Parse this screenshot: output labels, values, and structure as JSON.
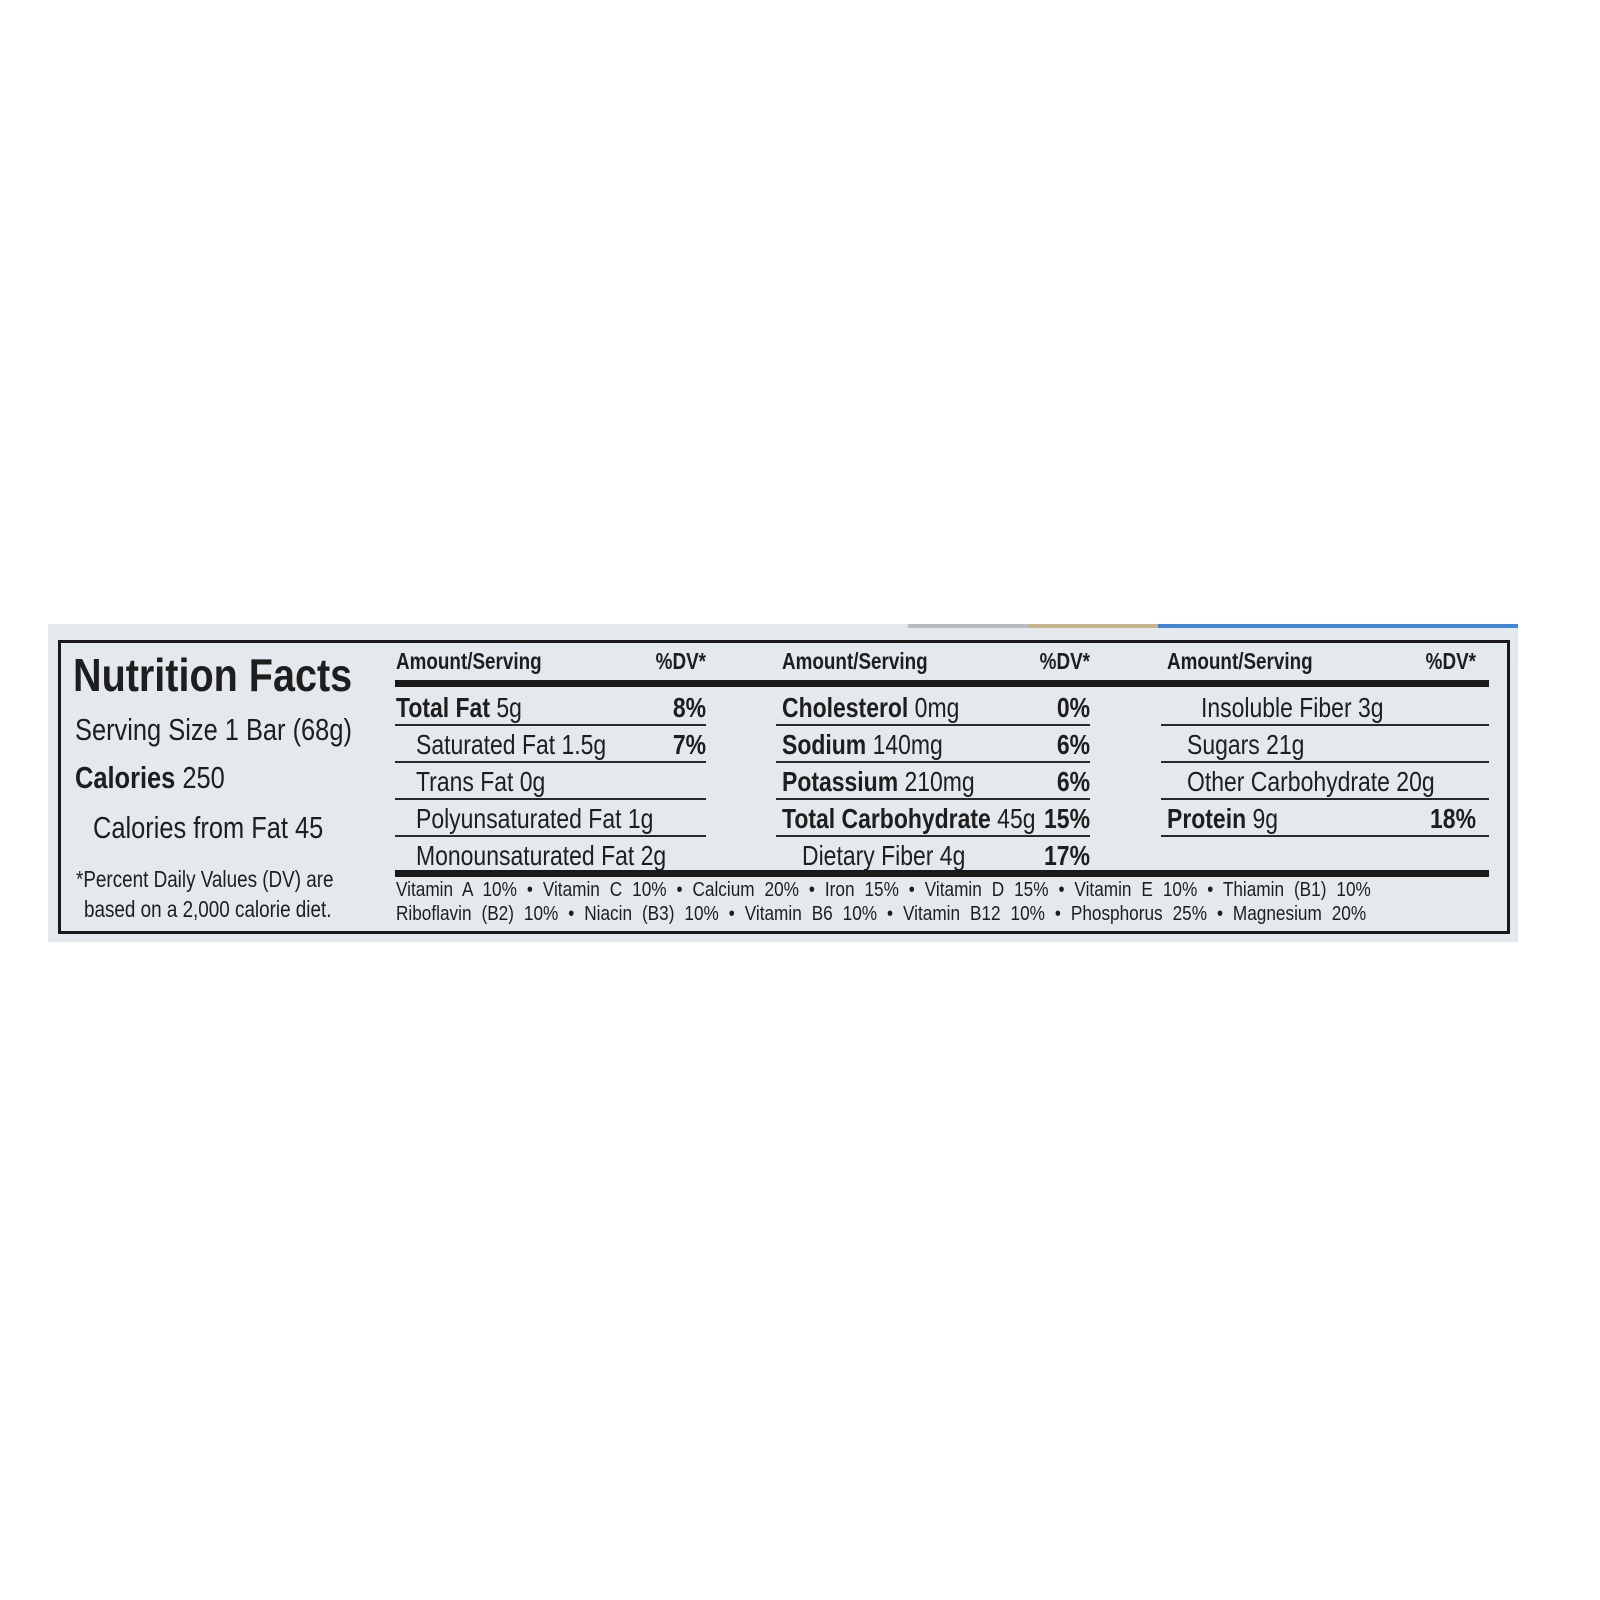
{
  "label": {
    "title": "Nutrition Facts",
    "serving_size": "Serving Size 1 Bar (68g)",
    "calories_label": "Calories",
    "calories_value": "250",
    "calories_from_fat": "Calories from Fat 45",
    "footnote_line1": "*Percent Daily Values (DV) are",
    "footnote_line2": "based on a 2,000 calorie diet."
  },
  "columns": [
    {
      "header_amount": "Amount/Serving",
      "header_dv": "%DV*",
      "rows": [
        {
          "label": "Total Fat",
          "amount": "5g",
          "dv": "8%",
          "bold": true,
          "indent": 0
        },
        {
          "label": "Saturated Fat",
          "amount": "1.5g",
          "dv": "7%",
          "bold": false,
          "indent": 1
        },
        {
          "label": "Trans Fat",
          "amount": "0g",
          "dv": "",
          "bold": false,
          "indent": 1
        },
        {
          "label": "Polyunsaturated Fat",
          "amount": "1g",
          "dv": "",
          "bold": false,
          "indent": 1
        },
        {
          "label": "Monounsaturated Fat",
          "amount": "2g",
          "dv": "",
          "bold": false,
          "indent": 1
        }
      ]
    },
    {
      "header_amount": "Amount/Serving",
      "header_dv": "%DV*",
      "rows": [
        {
          "label": "Cholesterol",
          "amount": "0mg",
          "dv": "0%",
          "bold": true,
          "indent": 0
        },
        {
          "label": "Sodium",
          "amount": "140mg",
          "dv": "6%",
          "bold": true,
          "indent": 0
        },
        {
          "label": "Potassium",
          "amount": "210mg",
          "dv": "6%",
          "bold": true,
          "indent": 0
        },
        {
          "label": "Total Carbohydrate",
          "amount": "45g",
          "dv": "15%",
          "bold": true,
          "indent": 0
        },
        {
          "label": "Dietary Fiber",
          "amount": "4g",
          "dv": "17%",
          "bold": false,
          "indent": 1
        }
      ]
    },
    {
      "header_amount": "Amount/Serving",
      "header_dv": "%DV*",
      "rows": [
        {
          "label": "Insoluble Fiber",
          "amount": "3g",
          "dv": "",
          "bold": false,
          "indent": 2
        },
        {
          "label": "Sugars",
          "amount": "21g",
          "dv": "",
          "bold": false,
          "indent": 1
        },
        {
          "label": "Other Carbohydrate",
          "amount": "20g",
          "dv": "",
          "bold": false,
          "indent": 1
        },
        {
          "label": "Protein",
          "amount": "9g",
          "dv": "18%",
          "bold": true,
          "indent": 0
        }
      ]
    }
  ],
  "vitamins": {
    "line1": "Vitamin A 10% • Vitamin C 10% • Calcium 20% • Iron 15% • Vitamin D 15% • Vitamin E 10% • Thiamin (B1) 10%",
    "line2": "Riboflavin (B2) 10% • Niacin (B3) 10% • Vitamin B6 10% • Vitamin B12 10% • Phosphorus 25% • Magnesium 20%"
  },
  "colors": {
    "panel": "#e3e9ec",
    "ink": "#1e1e1e",
    "accent_strip": "#3f86d6"
  }
}
